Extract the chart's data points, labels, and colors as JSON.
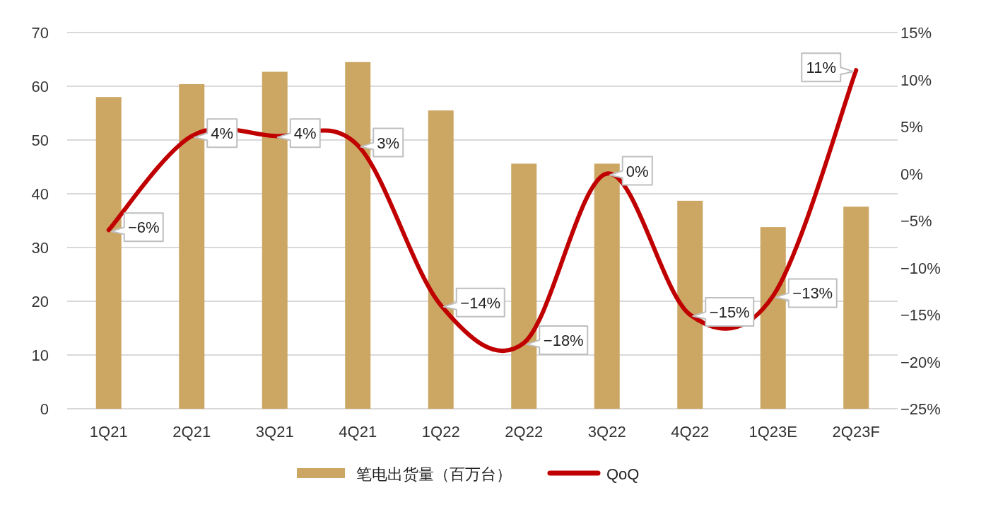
{
  "chart_data": {
    "type": "bar",
    "categories": [
      "1Q21",
      "2Q21",
      "3Q21",
      "4Q21",
      "1Q22",
      "2Q22",
      "3Q22",
      "4Q22",
      "1Q23E",
      "2Q23F"
    ],
    "series": [
      {
        "name": "笔电出货量（百万台）",
        "color": "#cca663",
        "values": [
          58.0,
          60.4,
          62.7,
          64.5,
          55.5,
          45.6,
          45.6,
          38.7,
          33.8,
          37.6
        ]
      },
      {
        "name": "QoQ",
        "type": "line",
        "axis": "y2",
        "color": "#c00000",
        "values": [
          -6,
          4,
          4,
          3,
          -14,
          -18,
          0,
          -15,
          -13,
          11
        ],
        "value_labels": [
          "−6%",
          "4%",
          "4%",
          "3%",
          "−14%",
          "−18%",
          "0%",
          "−15%",
          "−13%",
          "11%"
        ]
      }
    ],
    "ylim": [
      0,
      70
    ],
    "yticks": [
      0,
      10,
      20,
      30,
      40,
      50,
      60,
      70
    ],
    "y2lim": [
      -25,
      15
    ],
    "y2ticks": [
      {
        "value": -25,
        "label": "−25%"
      },
      {
        "value": -20,
        "label": "−20%"
      },
      {
        "value": -15,
        "label": "−15%"
      },
      {
        "value": -10,
        "label": "−10%"
      },
      {
        "value": -5,
        "label": "−5%"
      },
      {
        "value": 0,
        "label": "0%"
      },
      {
        "value": 5,
        "label": "5%"
      },
      {
        "value": 10,
        "label": "10%"
      },
      {
        "value": 15,
        "label": "15%"
      }
    ],
    "grid": "y",
    "legend": "bottom",
    "line_style": "solid"
  }
}
